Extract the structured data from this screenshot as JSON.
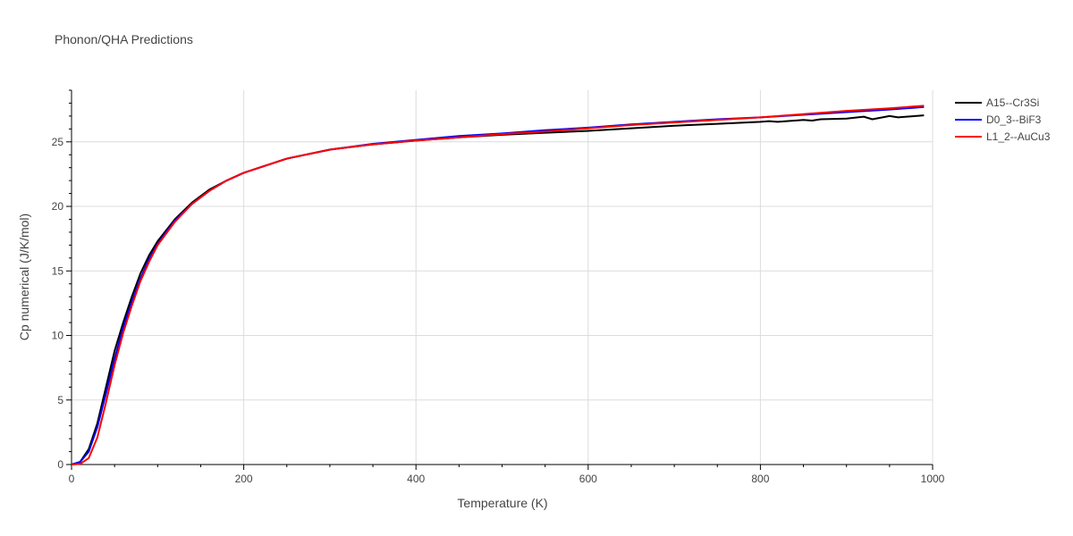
{
  "chart_data": {
    "type": "line",
    "title": "Phonon/QHA Predictions",
    "xlabel": "Temperature (K)",
    "ylabel": "Cp numerical (J/K/mol)",
    "xlim": [
      0,
      1000
    ],
    "ylim": [
      0,
      29
    ],
    "x_ticks": [
      0,
      200,
      400,
      600,
      800,
      1000
    ],
    "y_ticks": [
      0,
      5,
      10,
      15,
      20,
      25
    ],
    "grid": true,
    "legend_position": "top-right",
    "series": [
      {
        "name": "A15--Cr3Si",
        "color": "#000000",
        "x": [
          0,
          10,
          20,
          30,
          40,
          50,
          60,
          70,
          80,
          90,
          100,
          120,
          140,
          160,
          180,
          200,
          250,
          300,
          350,
          400,
          450,
          500,
          550,
          600,
          650,
          700,
          750,
          800,
          810,
          820,
          850,
          860,
          870,
          900,
          920,
          930,
          950,
          960,
          990
        ],
        "y": [
          0,
          0.2,
          1.2,
          3.2,
          6.0,
          8.8,
          11.0,
          13.0,
          14.8,
          16.2,
          17.3,
          19.0,
          20.3,
          21.3,
          22.0,
          22.6,
          23.7,
          24.4,
          24.8,
          25.1,
          25.35,
          25.55,
          25.7,
          25.85,
          26.05,
          26.25,
          26.4,
          26.55,
          26.6,
          26.55,
          26.7,
          26.65,
          26.75,
          26.8,
          26.95,
          26.75,
          27.0,
          26.9,
          27.05
        ]
      },
      {
        "name": "D0_3--BiF3",
        "color": "#0000ff",
        "x": [
          0,
          10,
          20,
          30,
          40,
          50,
          60,
          70,
          80,
          90,
          100,
          120,
          140,
          160,
          180,
          200,
          250,
          300,
          350,
          400,
          450,
          500,
          550,
          600,
          650,
          700,
          750,
          800,
          850,
          900,
          950,
          990
        ],
        "y": [
          0,
          0.2,
          1.0,
          2.9,
          5.5,
          8.2,
          10.6,
          12.6,
          14.4,
          15.9,
          17.1,
          18.9,
          20.2,
          21.2,
          22.0,
          22.6,
          23.7,
          24.4,
          24.85,
          25.15,
          25.45,
          25.65,
          25.9,
          26.1,
          26.35,
          26.55,
          26.75,
          26.9,
          27.1,
          27.3,
          27.5,
          27.7
        ]
      },
      {
        "name": "L1_2--AuCu3",
        "color": "#ff0000",
        "x": [
          0,
          10,
          20,
          30,
          40,
          50,
          60,
          70,
          80,
          90,
          100,
          120,
          140,
          160,
          180,
          200,
          250,
          300,
          350,
          400,
          450,
          500,
          550,
          600,
          650,
          700,
          750,
          800,
          850,
          900,
          950,
          990
        ],
        "y": [
          0,
          0.05,
          0.5,
          2.1,
          4.8,
          7.7,
          10.2,
          12.3,
          14.2,
          15.7,
          17.0,
          18.8,
          20.2,
          21.2,
          22.0,
          22.6,
          23.7,
          24.4,
          24.8,
          25.1,
          25.35,
          25.6,
          25.8,
          26.05,
          26.3,
          26.5,
          26.7,
          26.9,
          27.15,
          27.4,
          27.6,
          27.8
        ]
      }
    ]
  }
}
